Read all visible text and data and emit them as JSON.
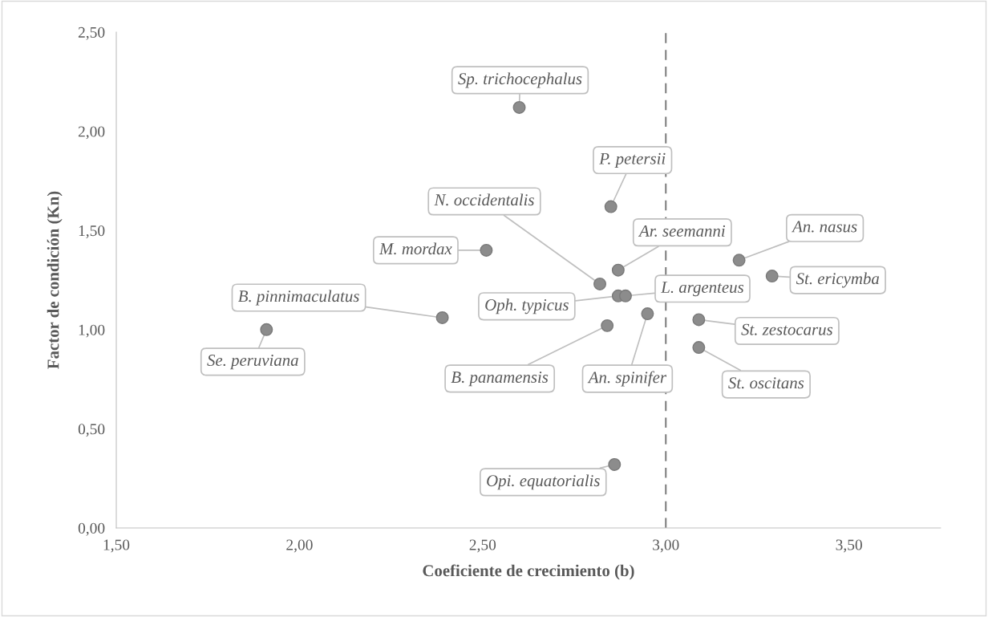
{
  "chart_data": {
    "type": "scatter",
    "xlabel": "Coeficiente de crecimiento (b)",
    "ylabel": "Factor de condición (Kn)",
    "x": [
      2.6,
      2.85,
      2.82,
      2.51,
      2.39,
      1.91,
      2.87,
      2.89,
      2.84,
      2.87,
      2.95,
      3.2,
      3.29,
      3.09,
      3.09,
      2.86
    ],
    "series": [
      {
        "color": "#8c8c8c",
        "values": [
          2.12,
          1.62,
          1.23,
          1.4,
          1.06,
          1.0,
          1.17,
          1.17,
          1.02,
          1.3,
          1.08,
          1.35,
          1.27,
          1.05,
          0.91,
          0.32
        ]
      }
    ],
    "marker": "circle",
    "xlim": [
      1.5,
      3.75
    ],
    "xticks": [
      {
        "value": 1.5,
        "label": "1,50"
      },
      {
        "value": 2.0,
        "label": "2,00"
      },
      {
        "value": 2.5,
        "label": "2,50"
      },
      {
        "value": 3.0,
        "label": "3,00"
      },
      {
        "value": 3.5,
        "label": "3,50"
      }
    ],
    "ylim": [
      0,
      2.5
    ],
    "yticks": [
      {
        "value": 0,
        "label": "0,00"
      },
      {
        "value": 0.5,
        "label": "0,50"
      },
      {
        "value": 1.0,
        "label": "1,00"
      },
      {
        "value": 1.5,
        "label": "1,50"
      },
      {
        "value": 2.0,
        "label": "2,00"
      },
      {
        "value": 2.5,
        "label": "2,50"
      }
    ],
    "grid": false,
    "ref_lines": [
      {
        "axis": "x",
        "value": 3.0,
        "color": "#7f7f7f",
        "line_style": "dashed"
      }
    ],
    "annotations": [
      {
        "text": "Sp. trichocephalus",
        "x": 2.6,
        "y": 2.12
      },
      {
        "text": "P. petersii",
        "x": 2.85,
        "y": 1.62
      },
      {
        "text": "N. occidentalis",
        "x": 2.82,
        "y": 1.23
      },
      {
        "text": "M. mordax",
        "x": 2.51,
        "y": 1.4
      },
      {
        "text": "B. pinnimaculatus",
        "x": 2.39,
        "y": 1.06
      },
      {
        "text": "Se. peruviana",
        "x": 1.91,
        "y": 1.0
      },
      {
        "text": "Oph. typicus",
        "x": 2.87,
        "y": 1.17
      },
      {
        "text": "L. argenteus",
        "x": 2.89,
        "y": 1.17
      },
      {
        "text": "B. panamensis",
        "x": 2.84,
        "y": 1.02
      },
      {
        "text": "Ar. seemanni",
        "x": 2.87,
        "y": 1.3
      },
      {
        "text": "An. spinifer",
        "x": 2.95,
        "y": 1.08
      },
      {
        "text": "An. nasus",
        "x": 3.2,
        "y": 1.35
      },
      {
        "text": "St. ericymba",
        "x": 3.29,
        "y": 1.27
      },
      {
        "text": "St. zestocarus",
        "x": 3.09,
        "y": 1.05
      },
      {
        "text": "St. oscitans",
        "x": 3.09,
        "y": 0.91
      },
      {
        "text": "Opi. equatorialis",
        "x": 2.86,
        "y": 0.32
      }
    ]
  }
}
